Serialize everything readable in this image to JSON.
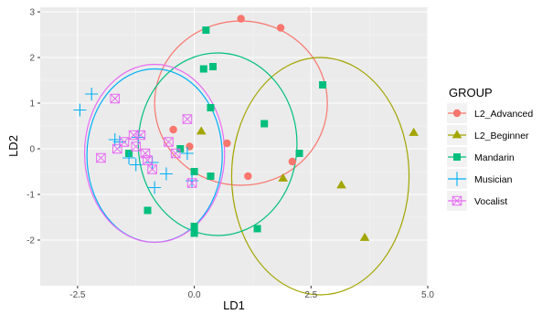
{
  "chart_data": {
    "type": "scatter",
    "xlabel": "LD1",
    "ylabel": "LD2",
    "xlim": [
      -3.3,
      5.0
    ],
    "ylim": [
      -3.0,
      3.1
    ],
    "x_ticks": [
      -2.5,
      0.0,
      2.5,
      5.0
    ],
    "x_tick_labels": [
      "-2.5",
      "0.0",
      "2.5",
      "5.0"
    ],
    "y_ticks": [
      -2,
      -1,
      0,
      1,
      2,
      3
    ],
    "y_tick_labels": [
      "-2",
      "-1",
      "0",
      "1",
      "2",
      "3"
    ],
    "grid": true,
    "legend": {
      "title": "GROUP",
      "position": "right"
    },
    "series": [
      {
        "name": "L2_Advanced",
        "color": "#F8766D",
        "shape": "circle",
        "points": [
          [
            1.0,
            2.85
          ],
          [
            1.85,
            2.65
          ],
          [
            -0.45,
            0.42
          ],
          [
            -0.1,
            0.05
          ],
          [
            0.7,
            0.12
          ],
          [
            2.1,
            -0.28
          ],
          [
            1.15,
            -0.6
          ]
        ],
        "ellipse": {
          "cx": 1.0,
          "cy": 1.0,
          "rx": 1.85,
          "ry": 1.8
        }
      },
      {
        "name": "L2_Beginner",
        "color": "#A3A500",
        "shape": "triangle",
        "points": [
          [
            4.7,
            0.35
          ],
          [
            0.15,
            0.38
          ],
          [
            1.9,
            -0.65
          ],
          [
            3.15,
            -0.8
          ],
          [
            3.65,
            -1.95
          ]
        ],
        "ellipse": {
          "cx": 2.7,
          "cy": -0.6,
          "rx": 1.9,
          "ry": 2.6
        }
      },
      {
        "name": "Mandarin",
        "color": "#00BF7D",
        "shape": "square",
        "points": [
          [
            0.25,
            2.6
          ],
          [
            0.2,
            1.75
          ],
          [
            0.4,
            1.8
          ],
          [
            2.75,
            1.4
          ],
          [
            0.35,
            0.9
          ],
          [
            1.5,
            0.55
          ],
          [
            -0.3,
            0.0
          ],
          [
            2.25,
            -0.1
          ],
          [
            -1.4,
            -0.1
          ],
          [
            0.0,
            -0.5
          ],
          [
            0.35,
            -0.6
          ],
          [
            -1.0,
            -1.35
          ],
          [
            1.35,
            -1.75
          ],
          [
            0.0,
            -1.7
          ],
          [
            0.0,
            -1.85
          ]
        ],
        "ellipse": {
          "cx": 0.5,
          "cy": 0.1,
          "rx": 1.7,
          "ry": 2.0
        }
      },
      {
        "name": "Musician",
        "color": "#00B0F6",
        "shape": "plus",
        "points": [
          [
            -2.2,
            1.2
          ],
          [
            -2.45,
            0.85
          ],
          [
            -1.7,
            0.2
          ],
          [
            -1.6,
            0.15
          ],
          [
            -1.2,
            0.25
          ],
          [
            -1.4,
            -0.2
          ],
          [
            -1.25,
            -0.35
          ],
          [
            -0.9,
            -0.3
          ],
          [
            -0.6,
            -0.55
          ],
          [
            -0.15,
            -0.1
          ],
          [
            -0.05,
            -0.7
          ],
          [
            -0.85,
            -0.85
          ]
        ],
        "ellipse": {
          "cx": -0.85,
          "cy": -0.15,
          "rx": 1.45,
          "ry": 1.9
        }
      },
      {
        "name": "Vocalist",
        "color": "#E76BF3",
        "shape": "boxx",
        "points": [
          [
            -1.7,
            1.1
          ],
          [
            -1.5,
            0.15
          ],
          [
            -1.3,
            0.3
          ],
          [
            -1.15,
            0.3
          ],
          [
            -1.25,
            0.05
          ],
          [
            -2.0,
            -0.2
          ],
          [
            -1.65,
            0.0
          ],
          [
            -1.05,
            -0.1
          ],
          [
            -1.0,
            -0.25
          ],
          [
            -0.9,
            -0.45
          ],
          [
            -0.55,
            0.15
          ],
          [
            -0.4,
            -0.1
          ],
          [
            -0.15,
            0.65
          ],
          [
            -0.05,
            -0.75
          ]
        ],
        "ellipse": {
          "cx": -0.85,
          "cy": -0.1,
          "rx": 1.5,
          "ry": 1.95
        }
      }
    ]
  }
}
